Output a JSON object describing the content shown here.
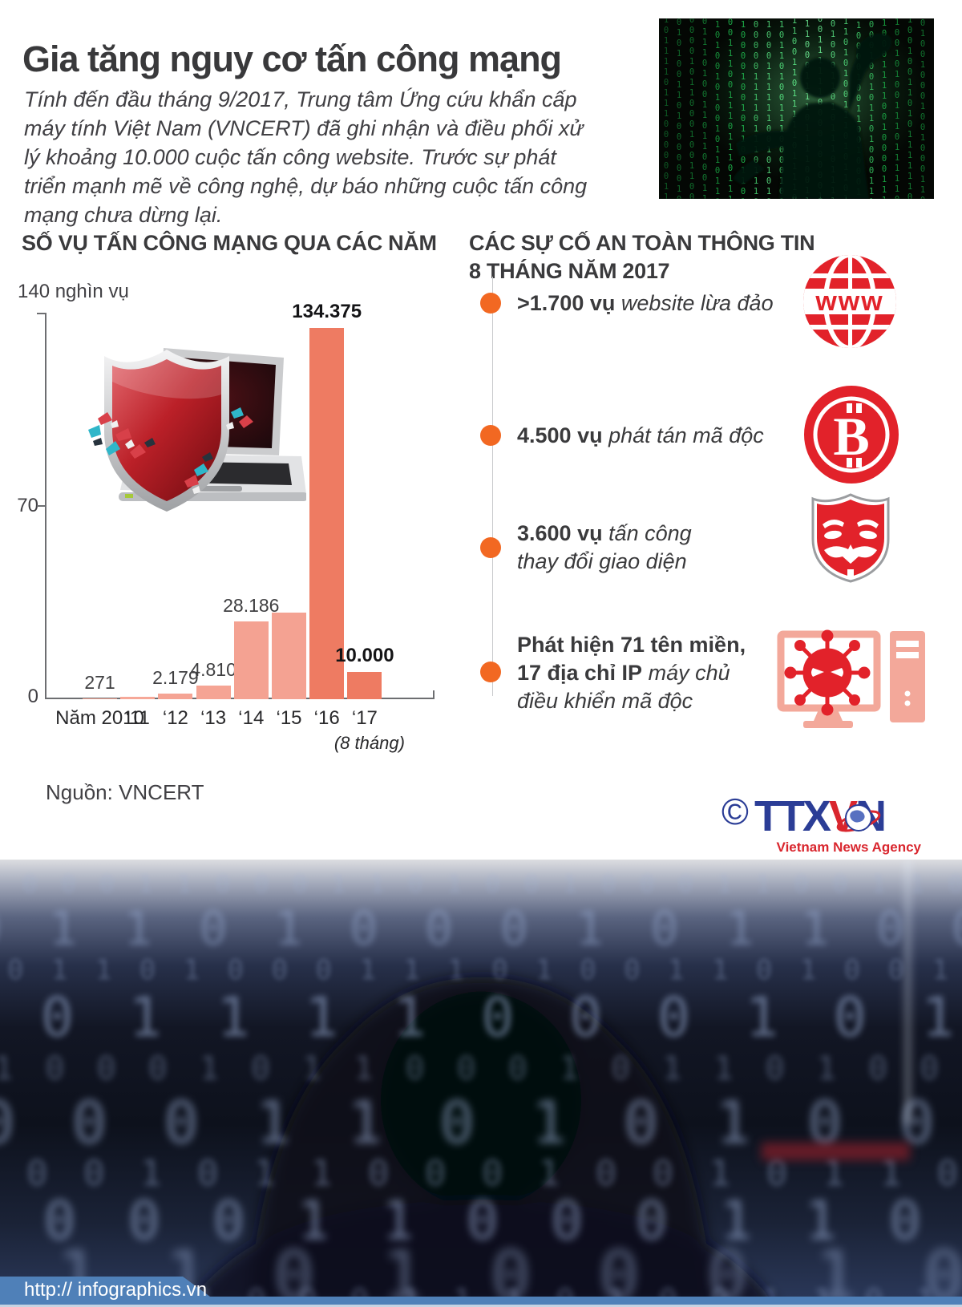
{
  "header": {
    "title": "Gia tăng nguy cơ tấn công mạng",
    "intro": "Tính đến đầu tháng 9/2017, Trung tâm Ứng cứu khẩn cấp máy tính Việt Nam (VNCERT) đã ghi nhận và điều phối xử lý khoảng 10.000 cuộc tấn công website. Trước sự phát triển mạnh mẽ về công nghệ, dự báo những cuộc tấn công mạng chưa dừng lại."
  },
  "chart_data": {
    "type": "bar",
    "title": "SỐ VỤ TẤN CÔNG MẠNG QUA CÁC NĂM",
    "unit": "nghìn vụ",
    "categories": [
      "Năm 2010",
      "‘11",
      "‘12",
      "‘13",
      "‘14",
      "‘15",
      "‘16",
      "‘17"
    ],
    "values": [
      271,
      800,
      2179,
      4810,
      28186,
      31500,
      134375,
      10000
    ],
    "value_labels": [
      "271",
      "",
      "2.179",
      "4.810",
      "28.186",
      "",
      "134.375",
      "10.000"
    ],
    "bold_value_labels": [
      false,
      false,
      false,
      false,
      false,
      false,
      true,
      true
    ],
    "estimated_values": [
      false,
      true,
      false,
      false,
      false,
      true,
      false,
      false
    ],
    "bar_colors": [
      "#f6a898",
      "#f6a898",
      "#f5a494",
      "#f5a494",
      "#f4a292",
      "#f4a292",
      "#ee7b62",
      "#ee7b62"
    ],
    "ylim": [
      0,
      140000
    ],
    "yticks": [
      {
        "v": 0,
        "label": "0"
      },
      {
        "v": 70000,
        "label": "70"
      },
      {
        "v": 140000,
        "label": "140 nghìn vụ"
      }
    ],
    "x_sublabel": "(8 tháng)",
    "x_sublabel_index": 7,
    "grid": false,
    "legend": false
  },
  "incidents": {
    "heading_line1": "CÁC SỰ CỐ AN TOÀN THÔNG TIN",
    "heading_line2": "8 THÁNG NĂM 2017",
    "bullet_color": "#f26822",
    "icon_color": "#e2222a",
    "items": [
      {
        "bold": ">1.700 vụ",
        "italic": "website lừa đảo",
        "icon": "www-globe-icon",
        "icon_text": "www"
      },
      {
        "bold": "4.500 vụ",
        "italic": "phát tán mã độc",
        "icon": "bitcoin-icon",
        "icon_text": "B"
      },
      {
        "bold": "3.600 vụ",
        "italic": "tấn công",
        "italic_line2": "thay đổi giao diện",
        "icon": "anonymous-mask-icon"
      },
      {
        "bold_line1": "Phát hiện 71 tên miền,",
        "bold_line2": "17 địa chỉ IP",
        "italic_line2": "máy chủ",
        "italic_line3": "điều khiển mã độc",
        "icon": "virus-computer-icon"
      }
    ]
  },
  "source": {
    "label": "Nguồn: VNCERT"
  },
  "logo": {
    "copyright": "©",
    "part1": "TTX",
    "part2": "V",
    "part3": "N",
    "subtitle": "Vietnam News Agency",
    "blue": "#2b3d96",
    "red": "#d9262e"
  },
  "bottom_photo": {
    "binary_rows": [
      "1 0 0 0 1 1 0 0 0 1 1 0 1 0 0 1 0 0 0 1 1 0 0 1",
      "0 1 1 0 1 0 0 0 1 0 1 1 0 0 1 0 0 1 1 0",
      "1 0 1 1 0 1 0 0 0 1 1 1 0 1 0 0 1 1 0 1 0 0",
      "0 0 1 1 1 1 0 0 0 1 0 1 1 0 1 0 0 0 1 1",
      "1 1 0 0 0 1 0 1 1 0 0 0 1 0 1 1 0 1 0 0 1 0",
      "0 0 0 1 1 0 1 0 1 0 0 1 1 1 0 0 1 0 1 1",
      "1 0 0 1 0 1 1 0 0 0 1 0 0 1 0 1 1 0 0 0 1 1"
    ]
  },
  "footer": {
    "url": "http:// infographics.vn",
    "bar_color": "#4f80b8"
  }
}
